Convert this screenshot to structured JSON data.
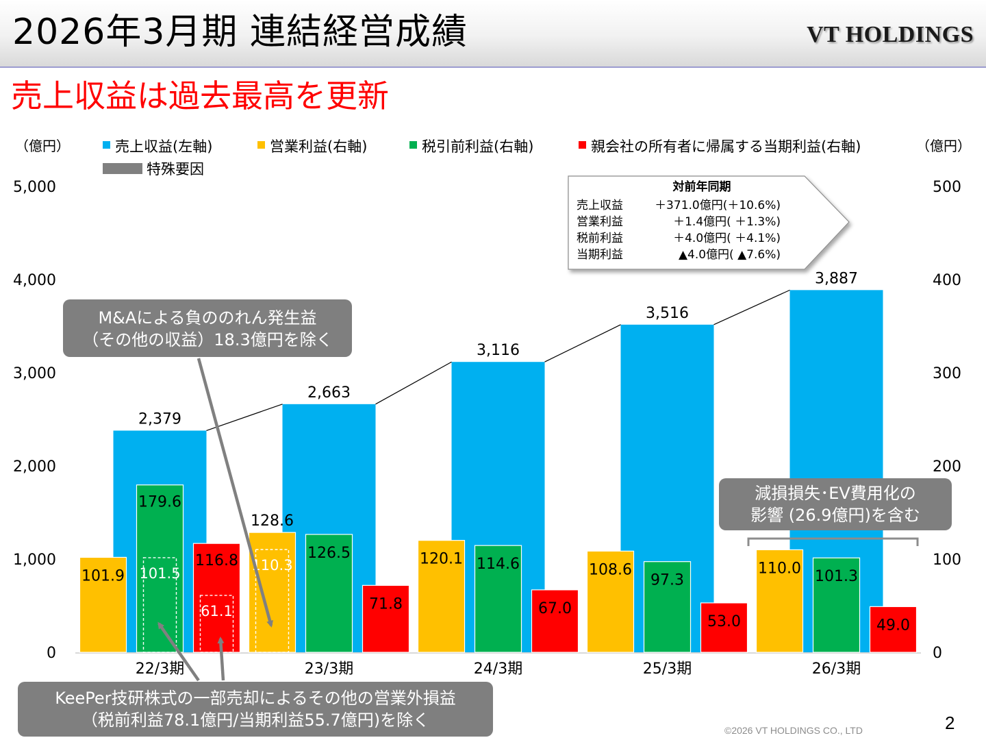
{
  "header": {
    "title": "2026年3月期 連結経営成績",
    "company": "VT HOLDINGS"
  },
  "subtitle": "売上収益は過去最高を更新",
  "chart_data": {
    "type": "bar",
    "categories": [
      "22/3期",
      "23/3期",
      "24/3期",
      "25/3期",
      "26/3期"
    ],
    "left_axis": {
      "unit": "（億円）",
      "ylim": [
        0,
        5000
      ],
      "ticks": [
        "0",
        "1,000",
        "2,000",
        "3,000",
        "4,000",
        "5,000"
      ]
    },
    "right_axis": {
      "unit": "（億円）",
      "ylim": [
        0,
        500
      ],
      "ticks": [
        "0",
        "100",
        "200",
        "300",
        "400",
        "500"
      ]
    },
    "series": [
      {
        "name": "売上収益(左軸)",
        "axis": "left",
        "color": "#00b0f0",
        "values": [
          2379,
          2663,
          3116,
          3516,
          3887
        ],
        "labels": [
          "2,379",
          "2,663",
          "3,116",
          "3,516",
          "3,887"
        ]
      },
      {
        "name": "営業利益(右軸)",
        "axis": "right",
        "color": "#ffc000",
        "values": [
          101.9,
          128.6,
          120.1,
          108.6,
          110.0
        ],
        "labels": [
          "101.9",
          "128.6",
          "120.1",
          "108.6",
          "110.0"
        ]
      },
      {
        "name": "税引前利益(右軸)",
        "axis": "right",
        "color": "#00b050",
        "values": [
          179.6,
          126.5,
          114.6,
          97.3,
          101.3
        ],
        "labels": [
          "179.6",
          "126.5",
          "114.6",
          "97.3",
          "101.3"
        ]
      },
      {
        "name": "親会社の所有者に帰属する当期利益(右軸)",
        "axis": "right",
        "color": "#ff0000",
        "values": [
          116.8,
          71.8,
          67.0,
          53.0,
          49.0
        ],
        "labels": [
          "116.8",
          "71.8",
          "67.0",
          "53.0",
          "49.0"
        ]
      }
    ],
    "special_factor": {
      "legend": "特殊要因",
      "color": "#808080",
      "items": [
        {
          "category_index": 0,
          "series_index": 2,
          "value": 101.5,
          "label": "101.5"
        },
        {
          "category_index": 0,
          "series_index": 3,
          "value": 61.1,
          "label": "61.1"
        },
        {
          "category_index": 1,
          "series_index": 1,
          "value": 110.3,
          "label": "110.3"
        }
      ]
    },
    "yoy_box": {
      "title": "対前年同期",
      "rows": [
        {
          "label": "売上収益",
          "value": "＋371.0億円(＋10.6%)"
        },
        {
          "label": "営業利益",
          "value": "＋1.4億円( ＋1.3%)"
        },
        {
          "label": "税前利益",
          "value": "＋4.0億円( ＋4.1%)"
        },
        {
          "label": "当期利益",
          "value": "▲4.0億円( ▲7.6%)"
        }
      ]
    },
    "callouts": {
      "ma": [
        "M&Aによる負ののれん発生益",
        "（その他の収益）18.3億円を除く"
      ],
      "impairment": [
        "減損損失･EV費用化の",
        "影響 (26.9億円)を含む"
      ],
      "keeper": [
        "KeePer技研株式の一部売却によるその他の営業外損益",
        "（税前利益78.1億円/当期利益55.7億円)を除く"
      ]
    }
  },
  "footer": {
    "copyright": "©2026 VT HOLDINGS CO., LTD",
    "page_number": "2"
  }
}
